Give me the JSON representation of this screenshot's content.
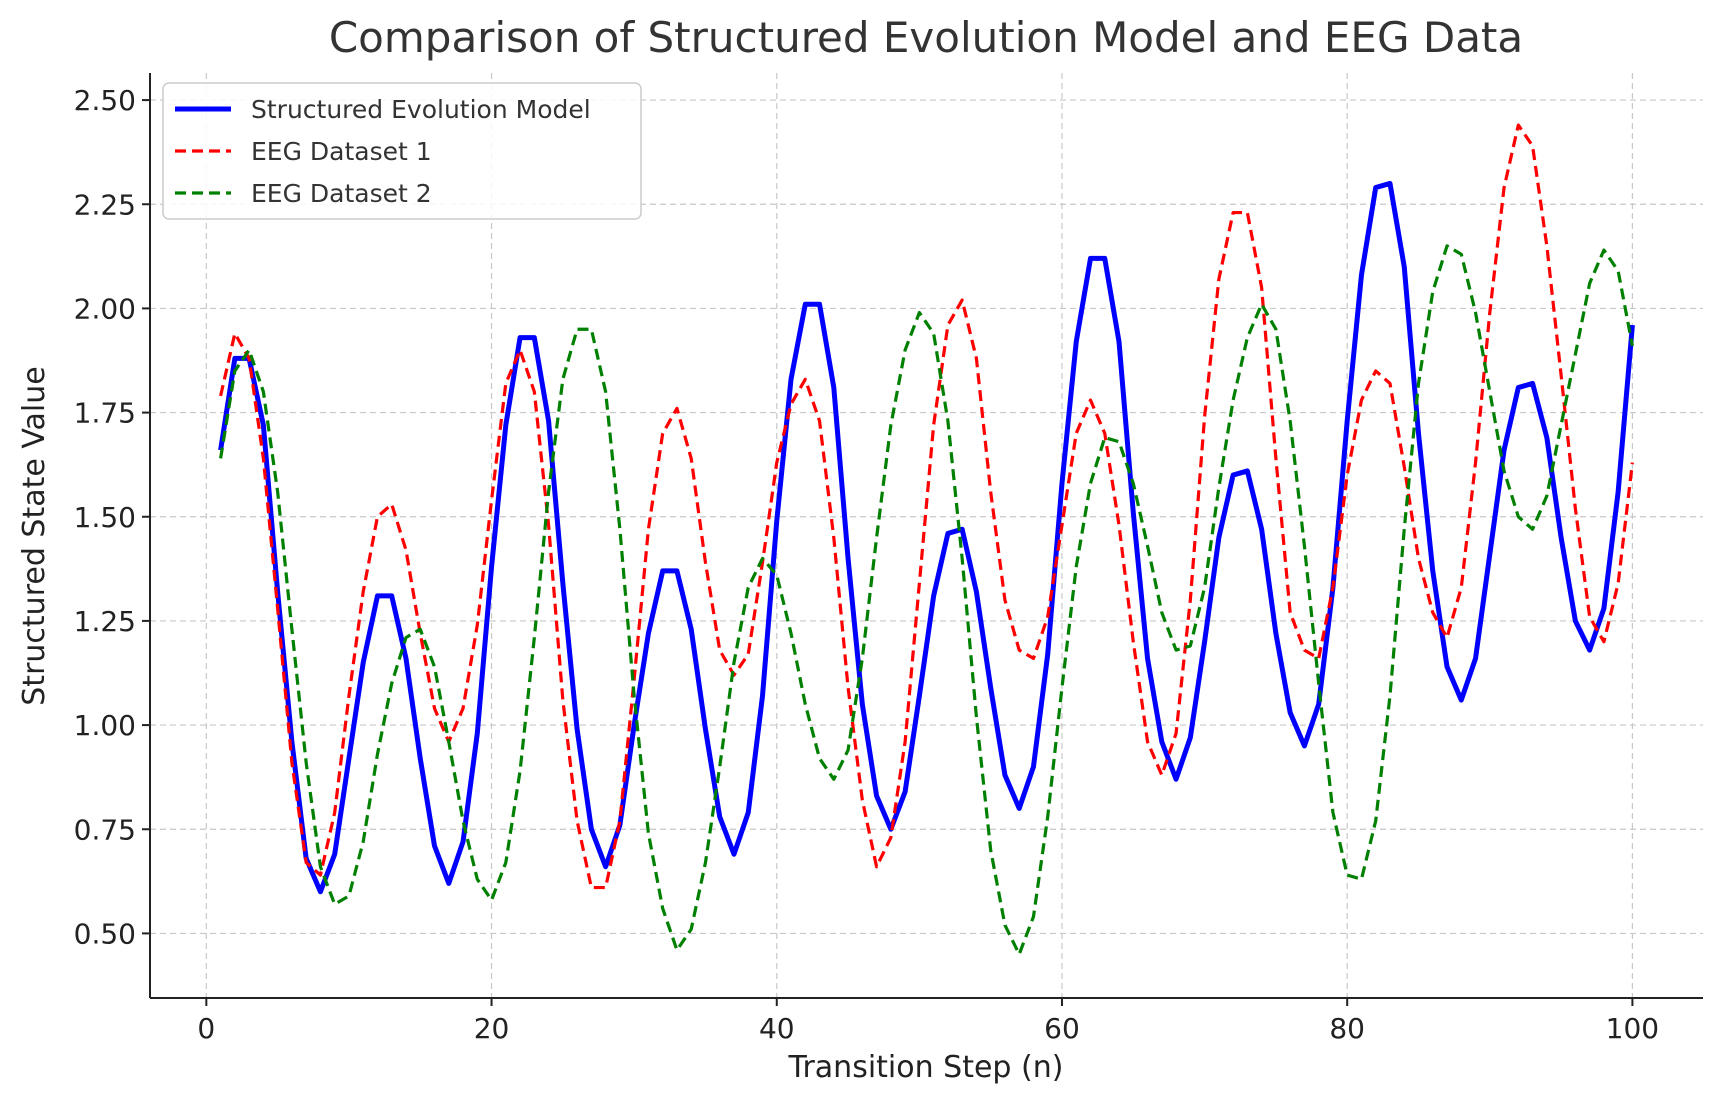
{
  "chart_data": {
    "type": "line",
    "title": "Comparison of Structured Evolution Model and EEG Data",
    "xlabel": "Transition Step (n)",
    "ylabel": "Structured State Value",
    "xlim": [
      -3.95,
      104.95
    ],
    "ylim": [
      0.345,
      2.565
    ],
    "xticks": [
      0,
      20,
      40,
      60,
      80,
      100
    ],
    "yticks": [
      0.5,
      0.75,
      1.0,
      1.25,
      1.5,
      1.75,
      2.0,
      2.25,
      2.5
    ],
    "ytick_labels": [
      "0.50",
      "0.75",
      "1.00",
      "1.25",
      "1.50",
      "1.75",
      "2.00",
      "2.25",
      "2.50"
    ],
    "grid": true,
    "legend_position": "top-left",
    "x": [
      1,
      2,
      3,
      4,
      5,
      6,
      7,
      8,
      9,
      10,
      11,
      12,
      13,
      14,
      15,
      16,
      17,
      18,
      19,
      20,
      21,
      22,
      23,
      24,
      25,
      26,
      27,
      28,
      29,
      30,
      31,
      32,
      33,
      34,
      35,
      36,
      37,
      38,
      39,
      40,
      41,
      42,
      43,
      44,
      45,
      46,
      47,
      48,
      49,
      50,
      51,
      52,
      53,
      54,
      55,
      56,
      57,
      58,
      59,
      60,
      61,
      62,
      63,
      64,
      65,
      66,
      67,
      68,
      69,
      70,
      71,
      72,
      73,
      74,
      75,
      76,
      77,
      78,
      79,
      80,
      81,
      82,
      83,
      84,
      85,
      86,
      87,
      88,
      89,
      90,
      91,
      92,
      93,
      94,
      95,
      96,
      97,
      98,
      99,
      100
    ],
    "series": [
      {
        "name": "Structured Evolution Model",
        "color": "#0000ff",
        "style": "solid",
        "values": [
          1.66,
          1.88,
          1.88,
          1.72,
          1.32,
          0.96,
          0.68,
          0.6,
          0.69,
          0.92,
          1.15,
          1.31,
          1.31,
          1.16,
          0.92,
          0.71,
          0.62,
          0.72,
          0.98,
          1.38,
          1.72,
          1.93,
          1.93,
          1.73,
          1.34,
          0.99,
          0.75,
          0.66,
          0.76,
          1.0,
          1.22,
          1.37,
          1.37,
          1.23,
          0.99,
          0.78,
          0.69,
          0.79,
          1.07,
          1.49,
          1.83,
          2.01,
          2.01,
          1.81,
          1.4,
          1.05,
          0.83,
          0.75,
          0.84,
          1.07,
          1.31,
          1.46,
          1.47,
          1.32,
          1.09,
          0.88,
          0.8,
          0.9,
          1.17,
          1.58,
          1.92,
          2.12,
          2.12,
          1.92,
          1.51,
          1.16,
          0.96,
          0.87,
          0.97,
          1.2,
          1.45,
          1.6,
          1.61,
          1.47,
          1.22,
          1.03,
          0.95,
          1.05,
          1.33,
          1.73,
          2.08,
          2.29,
          2.3,
          2.1,
          1.7,
          1.37,
          1.14,
          1.06,
          1.16,
          1.41,
          1.66,
          1.81,
          1.82,
          1.69,
          1.45,
          1.25,
          1.18,
          1.28,
          1.56,
          1.96
        ]
      },
      {
        "name": "EEG Dataset 1",
        "color": "#ff0000",
        "style": "dashed",
        "values": [
          1.79,
          1.94,
          1.88,
          1.64,
          1.28,
          0.91,
          0.67,
          0.64,
          0.79,
          1.07,
          1.32,
          1.5,
          1.53,
          1.42,
          1.22,
          1.04,
          0.96,
          1.04,
          1.24,
          1.54,
          1.82,
          1.9,
          1.8,
          1.48,
          1.06,
          0.77,
          0.61,
          0.61,
          0.77,
          1.11,
          1.47,
          1.7,
          1.76,
          1.64,
          1.39,
          1.18,
          1.12,
          1.17,
          1.39,
          1.63,
          1.77,
          1.83,
          1.73,
          1.45,
          1.09,
          0.82,
          0.66,
          0.73,
          0.96,
          1.34,
          1.72,
          1.96,
          2.02,
          1.88,
          1.56,
          1.3,
          1.18,
          1.16,
          1.26,
          1.48,
          1.7,
          1.78,
          1.7,
          1.48,
          1.2,
          0.96,
          0.88,
          0.98,
          1.3,
          1.74,
          2.07,
          2.23,
          2.23,
          2.05,
          1.64,
          1.27,
          1.18,
          1.16,
          1.33,
          1.6,
          1.78,
          1.85,
          1.82,
          1.62,
          1.4,
          1.27,
          1.21,
          1.33,
          1.63,
          1.99,
          2.29,
          2.44,
          2.39,
          2.15,
          1.84,
          1.52,
          1.26,
          1.2,
          1.34,
          1.63
        ]
      },
      {
        "name": "EEG Dataset 2",
        "color": "#008000",
        "style": "dashed",
        "values": [
          1.64,
          1.85,
          1.9,
          1.8,
          1.56,
          1.23,
          0.91,
          0.66,
          0.57,
          0.59,
          0.72,
          0.93,
          1.1,
          1.21,
          1.23,
          1.14,
          0.96,
          0.77,
          0.63,
          0.58,
          0.67,
          0.89,
          1.21,
          1.56,
          1.83,
          1.95,
          1.95,
          1.8,
          1.47,
          1.07,
          0.74,
          0.56,
          0.46,
          0.51,
          0.67,
          0.9,
          1.15,
          1.33,
          1.4,
          1.36,
          1.22,
          1.05,
          0.92,
          0.87,
          0.94,
          1.16,
          1.45,
          1.72,
          1.9,
          1.99,
          1.94,
          1.73,
          1.4,
          1.02,
          0.7,
          0.52,
          0.45,
          0.54,
          0.78,
          1.09,
          1.38,
          1.58,
          1.69,
          1.68,
          1.58,
          1.43,
          1.27,
          1.18,
          1.19,
          1.33,
          1.57,
          1.78,
          1.93,
          2.01,
          1.95,
          1.73,
          1.43,
          1.1,
          0.79,
          0.64,
          0.63,
          0.77,
          1.07,
          1.47,
          1.82,
          2.04,
          2.15,
          2.13,
          1.99,
          1.8,
          1.61,
          1.5,
          1.47,
          1.55,
          1.72,
          1.89,
          2.06,
          2.14,
          2.09,
          1.91
        ]
      }
    ]
  }
}
